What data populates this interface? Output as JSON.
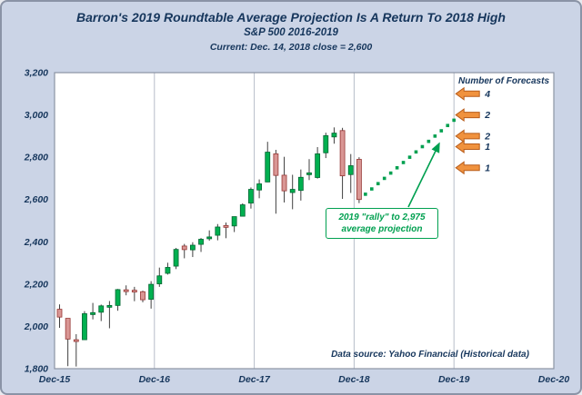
{
  "header": {
    "title": "Barron's 2019 Roundtable Average Projection Is A Return To 2018 High",
    "subtitle": "S&P 500 2016-2019",
    "current_line": "Current: Dec. 14, 2018 close = 2,600"
  },
  "forecasts_label": "Number of Forecasts",
  "data_source": "Data source: Yahoo Financial (Historical data)",
  "annotation": {
    "line1": "2019 \"rally\" to 2,975",
    "line2": "average projection"
  },
  "colors": {
    "background": "#cbd4e6",
    "navy_text": "#16365c",
    "plot_bg": "#ffffff",
    "plot_border": "#8c94a4",
    "grid": "#b7bdc9",
    "wick": "#404040",
    "up": "#00b050",
    "up_border": "#006530",
    "down": "#d99694",
    "down_border": "#963634",
    "projection": "#00a050",
    "annotation": "#00a050",
    "arrow": "#f0923e",
    "arrow_border": "#b85c1a"
  },
  "chart_data": {
    "type": "candlestick",
    "title": "Barron's 2019 Roundtable Average Projection Is A Return To 2018 High",
    "subtitle": "S&P 500 2016-2019",
    "xlabel": "",
    "ylabel": "",
    "ylim": [
      1800,
      3200
    ],
    "y_ticks": [
      1800,
      2000,
      2200,
      2400,
      2600,
      2800,
      3000,
      3200
    ],
    "x_ticks": [
      "Dec-15",
      "Dec-16",
      "Dec-17",
      "Dec-18",
      "Dec-19",
      "Dec-20"
    ],
    "grid": "vertical-only",
    "candles": [
      {
        "month": "Dec-15",
        "open": 2081,
        "high": 2104,
        "low": 1993,
        "close": 2044
      },
      {
        "month": "Jan-16",
        "open": 2038,
        "high": 2038,
        "low": 1812,
        "close": 1940
      },
      {
        "month": "Feb-16",
        "open": 1937,
        "high": 1963,
        "low": 1810,
        "close": 1932
      },
      {
        "month": "Mar-16",
        "open": 1937,
        "high": 2072,
        "low": 1937,
        "close": 2060
      },
      {
        "month": "Apr-16",
        "open": 2056,
        "high": 2111,
        "low": 2033,
        "close": 2065
      },
      {
        "month": "May-16",
        "open": 2067,
        "high": 2103,
        "low": 2025,
        "close": 2097
      },
      {
        "month": "Jun-16",
        "open": 2093,
        "high": 2120,
        "low": 1991,
        "close": 2099
      },
      {
        "month": "Jul-16",
        "open": 2099,
        "high": 2177,
        "low": 2074,
        "close": 2174
      },
      {
        "month": "Aug-16",
        "open": 2173,
        "high": 2194,
        "low": 2147,
        "close": 2171
      },
      {
        "month": "Sep-16",
        "open": 2171,
        "high": 2187,
        "low": 2119,
        "close": 2168
      },
      {
        "month": "Oct-16",
        "open": 2164,
        "high": 2169,
        "low": 2114,
        "close": 2126
      },
      {
        "month": "Nov-16",
        "open": 2128,
        "high": 2214,
        "low": 2084,
        "close": 2199
      },
      {
        "month": "Dec-16",
        "open": 2201,
        "high": 2278,
        "low": 2187,
        "close": 2239
      },
      {
        "month": "Jan-17",
        "open": 2251,
        "high": 2301,
        "low": 2245,
        "close": 2279
      },
      {
        "month": "Feb-17",
        "open": 2285,
        "high": 2371,
        "low": 2271,
        "close": 2364
      },
      {
        "month": "Mar-17",
        "open": 2380,
        "high": 2390,
        "low": 2322,
        "close": 2363
      },
      {
        "month": "Apr-17",
        "open": 2362,
        "high": 2398,
        "low": 2328,
        "close": 2384
      },
      {
        "month": "May-17",
        "open": 2388,
        "high": 2418,
        "low": 2352,
        "close": 2412
      },
      {
        "month": "Jun-17",
        "open": 2415,
        "high": 2454,
        "low": 2405,
        "close": 2423
      },
      {
        "month": "Jul-17",
        "open": 2431,
        "high": 2484,
        "low": 2407,
        "close": 2470
      },
      {
        "month": "Aug-17",
        "open": 2477,
        "high": 2491,
        "low": 2417,
        "close": 2472
      },
      {
        "month": "Sep-17",
        "open": 2475,
        "high": 2519,
        "low": 2446,
        "close": 2519
      },
      {
        "month": "Oct-17",
        "open": 2521,
        "high": 2582,
        "low": 2520,
        "close": 2575
      },
      {
        "month": "Nov-17",
        "open": 2583,
        "high": 2657,
        "low": 2557,
        "close": 2648
      },
      {
        "month": "Dec-17",
        "open": 2645,
        "high": 2695,
        "low": 2606,
        "close": 2674
      },
      {
        "month": "Jan-18",
        "open": 2683,
        "high": 2873,
        "low": 2682,
        "close": 2824
      },
      {
        "month": "Feb-18",
        "open": 2816,
        "high": 2835,
        "low": 2533,
        "close": 2714
      },
      {
        "month": "Mar-18",
        "open": 2715,
        "high": 2802,
        "low": 2586,
        "close": 2641
      },
      {
        "month": "Apr-18",
        "open": 2633,
        "high": 2717,
        "low": 2554,
        "close": 2648
      },
      {
        "month": "May-18",
        "open": 2643,
        "high": 2742,
        "low": 2595,
        "close": 2705
      },
      {
        "month": "Jun-18",
        "open": 2718,
        "high": 2791,
        "low": 2692,
        "close": 2726
      },
      {
        "month": "Jul-18",
        "open": 2704,
        "high": 2848,
        "low": 2699,
        "close": 2816
      },
      {
        "month": "Aug-18",
        "open": 2821,
        "high": 2916,
        "low": 2796,
        "close": 2902
      },
      {
        "month": "Sep-18",
        "open": 2896,
        "high": 2941,
        "low": 2864,
        "close": 2914
      },
      {
        "month": "Oct-18",
        "open": 2926,
        "high": 2939,
        "low": 2603,
        "close": 2712
      },
      {
        "month": "Nov-18",
        "open": 2718,
        "high": 2815,
        "low": 2631,
        "close": 2760
      },
      {
        "month": "Dec-18",
        "open": 2790,
        "high": 2800,
        "low": 2583,
        "close": 2600
      }
    ],
    "projection": {
      "label": "2019 rally to 2,975 average projection",
      "start_month": "Dec-18",
      "start_value": 2600,
      "end_month": "Dec-19",
      "end_value": 2975,
      "values": [
        2625,
        2650,
        2675,
        2700,
        2725,
        2750,
        2775,
        2800,
        2825,
        2850,
        2875,
        2900,
        2925,
        2950,
        2975
      ]
    },
    "forecasts": [
      {
        "count": "4",
        "level": 3100
      },
      {
        "count": "2",
        "level": 3000
      },
      {
        "count": "2",
        "level": 2900
      },
      {
        "count": "1",
        "level": 2850
      },
      {
        "count": "1",
        "level": 2750
      }
    ]
  }
}
